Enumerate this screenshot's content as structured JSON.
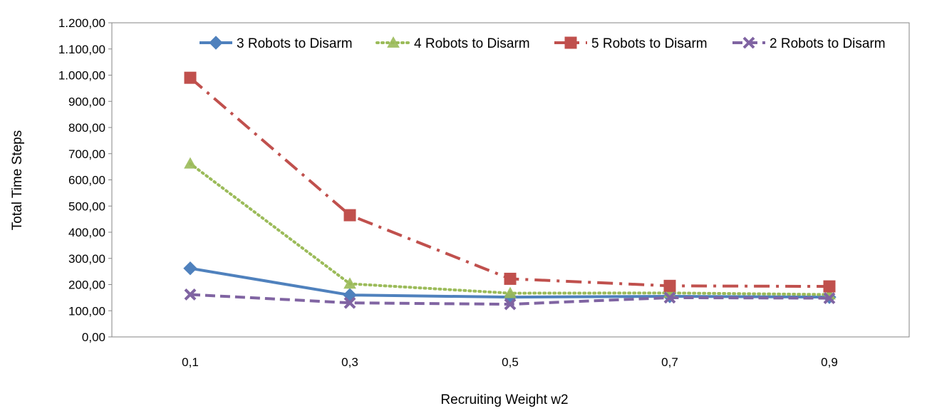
{
  "chart_data": {
    "type": "line",
    "title": "",
    "xlabel": "Recruiting Weight w2",
    "ylabel": "Total Time Steps",
    "categories": [
      "0,1",
      "0,3",
      "0,5",
      "0,7",
      "0,9"
    ],
    "y_ticks": [
      "0,00",
      "100,00",
      "200,00",
      "300,00",
      "400,00",
      "500,00",
      "600,00",
      "700,00",
      "800,00",
      "900,00",
      "1.000,00",
      "1.100,00",
      "1.200,00"
    ],
    "ylim": [
      0,
      1200
    ],
    "grid": false,
    "legend_position": "top",
    "series": [
      {
        "name": "3 Robots to Disarm",
        "values": [
          262,
          160,
          152,
          155,
          152
        ],
        "color": "#4f81bd",
        "dash": "solid",
        "marker": "diamond"
      },
      {
        "name": "4 Robots to Disarm",
        "values": [
          662,
          203,
          167,
          168,
          162
        ],
        "color": "#9bbb59",
        "dash": "dot",
        "marker": "triangle"
      },
      {
        "name": "5 Robots to Disarm",
        "values": [
          990,
          465,
          222,
          195,
          193
        ],
        "color": "#c0504d",
        "dash": "dashdot",
        "marker": "square"
      },
      {
        "name": "2 Robots to Disarm",
        "values": [
          162,
          130,
          125,
          150,
          148
        ],
        "color": "#8064a2",
        "dash": "dash",
        "marker": "x"
      }
    ]
  }
}
